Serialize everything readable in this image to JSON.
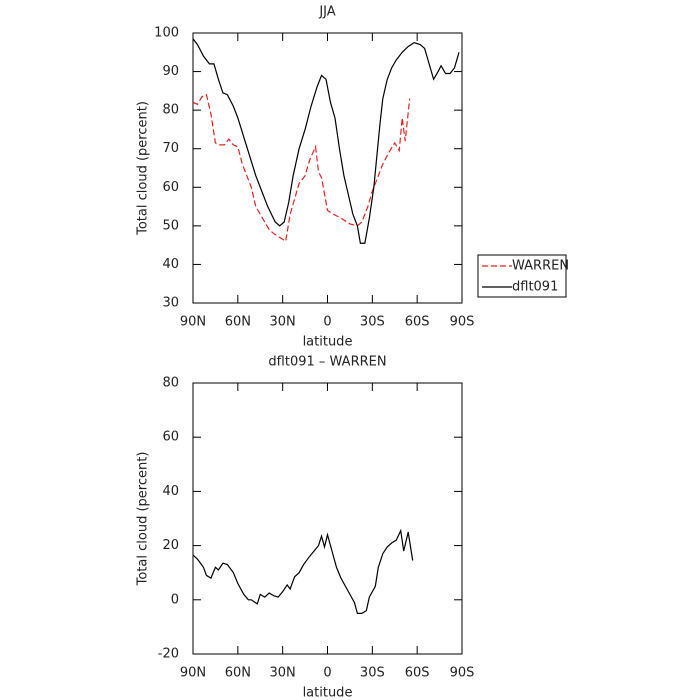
{
  "chart_data": [
    {
      "type": "line",
      "title": "JJA",
      "xlabel": "latitude",
      "ylabel": "Total cloud (percent)",
      "xlim": [
        90,
        -90
      ],
      "ylim": [
        30,
        100
      ],
      "xticks": [
        {
          "value": 90,
          "label": "90N"
        },
        {
          "value": 60,
          "label": "60N"
        },
        {
          "value": 30,
          "label": "30N"
        },
        0,
        {
          "value": -30,
          "label": "30S"
        },
        {
          "value": -60,
          "label": "60S"
        },
        {
          "value": -90,
          "label": "90S"
        }
      ],
      "yticks": [
        30,
        40,
        50,
        60,
        70,
        80,
        90,
        100
      ],
      "legend": "right",
      "series": [
        {
          "name": "WARREN",
          "color": "#e8201c",
          "line_style": "dashed",
          "x": [
            90,
            87,
            84,
            81,
            78,
            75,
            72,
            69,
            66,
            63,
            60,
            57,
            54,
            51,
            48,
            45,
            42,
            39,
            36,
            32,
            28,
            25,
            22,
            19,
            15,
            12,
            8,
            6,
            4,
            0,
            -4,
            -9,
            -15,
            -20,
            -23,
            -27,
            -30,
            -34,
            -37,
            -41,
            -45,
            -48,
            -50,
            -52,
            -55
          ],
          "values": [
            82,
            81.5,
            83.5,
            84,
            79,
            71.5,
            71,
            71,
            72.5,
            71,
            70.5,
            66,
            63,
            60,
            55,
            53,
            51,
            49,
            48,
            47,
            46,
            53,
            57,
            61,
            63,
            67,
            70.5,
            64,
            62.5,
            54,
            53,
            52,
            50.5,
            50,
            51,
            55,
            59,
            63,
            66,
            69,
            71.5,
            69.5,
            78,
            72,
            83
          ]
        },
        {
          "name": "dflt091",
          "color": "#000000",
          "line_style": "solid",
          "x": [
            90,
            87,
            83,
            79,
            76,
            73,
            70,
            67,
            63,
            60,
            56,
            52,
            48,
            44,
            40,
            35,
            32,
            29,
            26,
            23,
            19,
            15,
            11,
            7,
            4,
            1,
            -2,
            -5,
            -8,
            -11,
            -14,
            -17,
            -20,
            -22,
            -25,
            -28,
            -31,
            -33,
            -35,
            -37,
            -40,
            -43,
            -46,
            -50,
            -54,
            -58,
            -62,
            -65,
            -68,
            -71,
            -74,
            -76,
            -79,
            -82,
            -85,
            -88
          ],
          "values": [
            98.5,
            97,
            94,
            92,
            92,
            88,
            84.5,
            84,
            81,
            78,
            73,
            68,
            63,
            59,
            55,
            51,
            50,
            51,
            56,
            63,
            70,
            75,
            81,
            86,
            89,
            88,
            82,
            78,
            70,
            63,
            58,
            53,
            50,
            45.5,
            45.5,
            52,
            60,
            68,
            76,
            83,
            88,
            91,
            93,
            95,
            96.5,
            97.5,
            97,
            96,
            92,
            88,
            90,
            91.5,
            89.5,
            89.5,
            91,
            95
          ]
        }
      ]
    },
    {
      "type": "line",
      "title": "dflt091 – WARREN",
      "xlabel": "latitude",
      "ylabel": "Total cloud (percent)",
      "xlim": [
        90,
        -90
      ],
      "ylim": [
        -20,
        80
      ],
      "xticks": [
        {
          "value": 90,
          "label": "90N"
        },
        {
          "value": 60,
          "label": "60N"
        },
        {
          "value": 30,
          "label": "30N"
        },
        0,
        {
          "value": -30,
          "label": "30S"
        },
        {
          "value": -60,
          "label": "60S"
        },
        {
          "value": -90,
          "label": "90S"
        }
      ],
      "yticks": [
        -20,
        0,
        20,
        40,
        60,
        80
      ],
      "series": [
        {
          "color": "#000000",
          "line_style": "solid",
          "x": [
            90,
            87,
            83,
            81,
            78,
            75,
            73,
            70,
            67,
            63,
            60,
            56,
            53,
            51,
            47,
            45,
            42,
            39,
            36,
            33,
            30,
            27,
            25,
            22,
            19,
            16,
            12,
            9,
            6,
            4,
            2,
            0,
            -3,
            -6,
            -9,
            -12,
            -15,
            -18,
            -20,
            -23,
            -26,
            -28,
            -32,
            -34,
            -37,
            -40,
            -43,
            -46,
            -49,
            -51,
            -54,
            -57
          ],
          "values": [
            16.5,
            15,
            12,
            9,
            8,
            12,
            11,
            13.5,
            13,
            10,
            6,
            2,
            0,
            0,
            -1.5,
            2,
            1,
            2.5,
            1.5,
            1,
            3,
            5.5,
            4,
            8.5,
            10,
            13,
            16,
            18,
            20,
            23.5,
            19.5,
            24,
            18,
            12,
            8,
            5,
            2,
            -1,
            -5,
            -5,
            -4,
            1,
            5,
            12,
            17,
            19.5,
            21,
            22,
            25.5,
            18,
            25,
            14.5
          ]
        }
      ]
    }
  ]
}
